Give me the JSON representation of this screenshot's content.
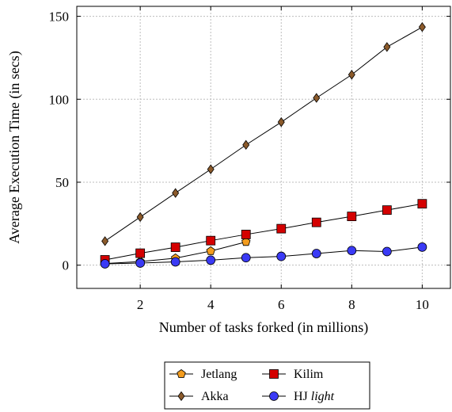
{
  "chart_data": {
    "type": "line",
    "xlabel": "Number of tasks forked (in millions)",
    "ylabel": "Average Execution Time (in secs)",
    "xlim": [
      0.2,
      10.8
    ],
    "ylim": [
      -14,
      156
    ],
    "xticks": [
      2,
      4,
      6,
      8,
      10
    ],
    "yticks": [
      0,
      50,
      100,
      150
    ],
    "grid": true,
    "legend_position": "bottom-center",
    "series": [
      {
        "name": "Jetlang",
        "marker": "pentagon",
        "color": "#f39c1e",
        "x": [
          1,
          2,
          3,
          4,
          5
        ],
        "values": [
          1.0,
          2.2,
          4.2,
          8.5,
          14.0
        ]
      },
      {
        "name": "Kilim",
        "marker": "square",
        "color": "#d40000",
        "x": [
          1,
          2,
          3,
          4,
          5,
          6,
          7,
          8,
          9,
          10
        ],
        "values": [
          3.2,
          7.2,
          10.8,
          14.8,
          18.5,
          22.0,
          25.8,
          29.4,
          33.2,
          37.0
        ]
      },
      {
        "name": "Akka",
        "marker": "diamond",
        "color": "#8b5a2b",
        "x": [
          1,
          2,
          3,
          4,
          5,
          6,
          7,
          8,
          9,
          10
        ],
        "values": [
          14.5,
          29.0,
          43.5,
          57.8,
          72.5,
          86.2,
          100.8,
          114.8,
          131.5,
          143.5
        ]
      },
      {
        "name": "HJ ",
        "name_italic": "light",
        "marker": "circle",
        "color": "#3a3af5",
        "x": [
          1,
          2,
          3,
          4,
          5,
          6,
          7,
          8,
          9,
          10
        ],
        "values": [
          0.8,
          1.3,
          2.0,
          3.0,
          4.5,
          5.3,
          7.0,
          8.8,
          8.2,
          10.9
        ]
      }
    ]
  }
}
